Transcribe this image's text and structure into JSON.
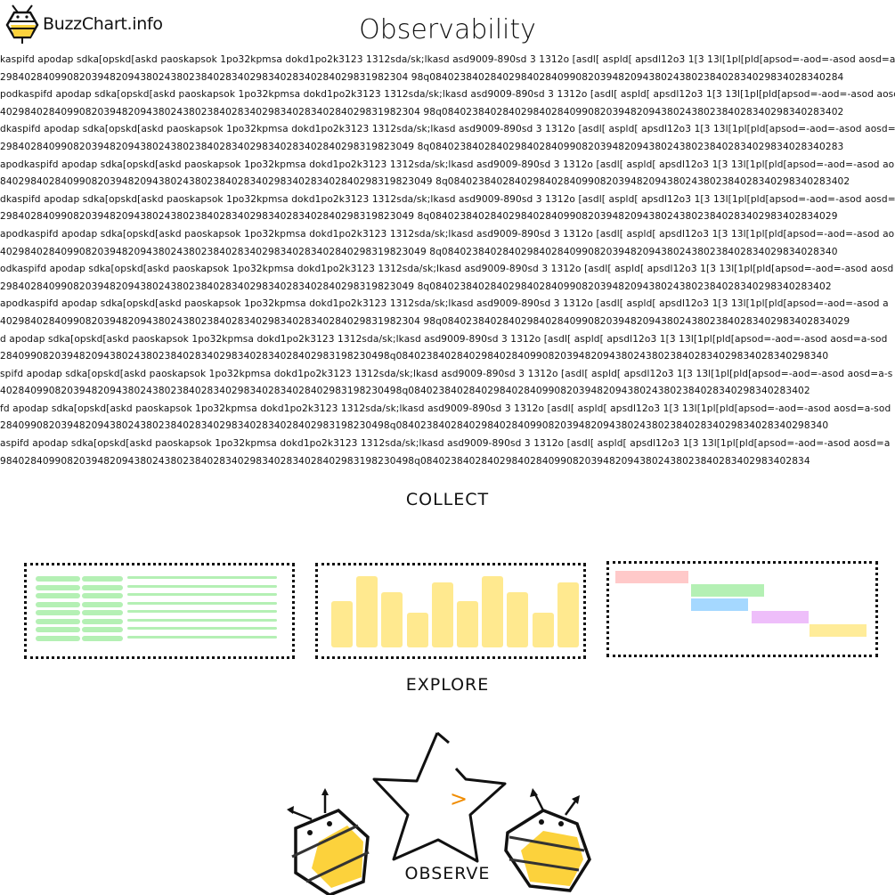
{
  "header": {
    "logo_text": "BuzzChart.info",
    "title": "Observability"
  },
  "filler_lines": [
    "kaspifd apodap sdka[opskd[askd paoskapsok 1po32kpmsa dokd1po2k3123 1312sda/sk;lkasd asd9009-890sd 3 1312o [asdl[ aspld[ apsdl12o3 1[3 13l[1pl[pld[apsod=-aod=-asod aosd=a-sod",
    "2984028409908203948209438024380238402834029834028340284029831982304 98q08402384028402984028409908203948209438024380238402834029834028340284",
    "podkaspifd apodap sdka[opskd[askd paoskapsok 1po32kpmsa dokd1po2k3123 1312sda/sk;lkasd asd9009-890sd 3 1312o [asdl[ aspld[ apsdl12o3 1[3 13l[1pl[pld[apsod=-aod=-asod aosd=",
    "402984028409908203948209438024380238402834029834028340284029831982304 98q084023840284029840284099082039482094380243802384028340298340283402",
    "dkaspifd apodap sdka[opskd[askd paoskapsok 1po32kpmsa dokd1po2k3123 1312sda/sk;lkasd asd9009-890sd 3 1312o [asdl[ aspld[ apsdl12o3 1[3 13l[1pl[pld[apsod=-aod=-asod aosd=a",
    "29840284099082039482094380243802384028340298340283402840298319823049 8q08402384028402984028409908203948209438024380238402834029834028340283",
    "apodkaspifd apodap sdka[opskd[askd paoskapsok 1po32kpmsa dokd1po2k3123 1312sda/sk;lkasd asd9009-890sd 3 1312o [asdl[ aspld[ apsdl12o3 1[3 13l[1pl[pld[apsod=-aod=-asod ao",
    "84029840284099082039482094380243802384028340298340283402840298319823049 8q084023840284029840284099082039482094380243802384028340298340283402",
    "dkaspifd apodap sdka[opskd[askd paoskapsok 1po32kpmsa dokd1po2k3123 1312sda/sk;lkasd asd9009-890sd 3 1312o [asdl[ aspld[ apsdl12o3 1[3 13l[1pl[pld[apsod=-aod=-asod aosd=a",
    "29840284099082039482094380243802384028340298340283402840298319823049 8q0840238402840298402840990820394820943802438023840283402983402834029",
    "apodkaspifd apodap sdka[opskd[askd paoskapsok 1po32kpmsa dokd1po2k3123 1312sda/sk;lkasd asd9009-890sd 3 1312o [asdl[ aspld[ apsdl12o3 1[3 13l[1pl[pld[apsod=-aod=-asod ao",
    "4029840284099082039482094380243802384028340298340283402840298319823049 8q08402384028402984028409908203948209438024380238402834029834028340",
    "odkaspifd apodap sdka[opskd[askd paoskapsok 1po32kpmsa dokd1po2k3123 1312sda/sk;lkasd asd9009-890sd 3 1312o [asdl[ aspld[ apsdl12o3 1[3 13l[1pl[pld[apsod=-aod=-asod aosd",
    "29840284099082039482094380243802384028340298340283402840298319823049 8q084023840284029840284099082039482094380243802384028340298340283402",
    "apodkaspifd apodap sdka[opskd[askd paoskapsok 1po32kpmsa dokd1po2k3123 1312sda/sk;lkasd asd9009-890sd 3 1312o [asdl[ aspld[ apsdl12o3 1[3 13l[1pl[pld[apsod=-aod=-asod a",
    "402984028409908203948209438024380238402834029834028340284029831982304 98q0840238402840298402840990820394820943802438023840283402983402834029",
    "d apodap sdka[opskd[askd paoskapsok 1po32kpmsa dokd1po2k3123 1312sda/sk;lkasd asd9009-890sd 3 1312o [asdl[ aspld[ apsdl12o3 1[3 13l[1pl[pld[apsod=-aod=-asod aosd=a-sod",
    "2840990820394820943802438023840283402983402834028402983198230498q08402384028402984028409908203948209438024380238402834029834028340298340",
    "spifd apodap sdka[opskd[askd paoskapsok 1po32kpmsa dokd1po2k3123 1312sda/sk;lkasd asd9009-890sd 3 1312o [asdl[ aspld[ apsdl12o3 1[3 13l[1pl[pld[apsod=-aod=-asod aosd=a-s",
    "402840990820394820943802438023840283402983402834028402983198230498q084023840284029840284099082039482094380243802384028340298340283402",
    "fd apodap sdka[opskd[askd paoskapsok 1po32kpmsa dokd1po2k3123 1312sda/sk;lkasd asd9009-890sd 3 1312o [asdl[ aspld[ apsdl12o3 1[3 13l[1pl[pld[apsod=-aod=-asod aosd=a-sod",
    "2840990820394820943802438023840283402983402834028402983198230498q08402384028402984028409908203948209438024380238402834029834028340298340",
    "aspifd apodap sdka[opskd[askd paoskapsok 1po32kpmsa dokd1po2k3123 1312sda/sk;lkasd asd9009-890sd 3 1312o [asdl[ aspld[ apsdl12o3 1[3 13l[1pl[pld[apsod=-aod=-asod aosd=a",
    "98402840990820394820943802438023840283402983402834028402983198230498q0840238402840298402840990820394820943802438023840283402983402834"
  ],
  "sections": {
    "collect": "COLLECT",
    "explore": "EXPLORE",
    "observe": "OBSERVE"
  },
  "thumbnails": {
    "table_color": "#b4f0b4",
    "bar_color": "#ffe98f",
    "bar_levels": [
      0.65,
      1.0,
      0.78,
      0.49,
      0.91,
      0.65,
      1.0,
      0.78,
      0.49,
      0.91
    ],
    "gantt_colors": [
      "#ffc9c9",
      "#b4f0b4",
      "#a5d8ff",
      "#eebefa",
      "#ffec99"
    ]
  },
  "star_glyph": ">",
  "colors": {
    "accent": "#f08c00",
    "honey": "#fcd23c"
  }
}
